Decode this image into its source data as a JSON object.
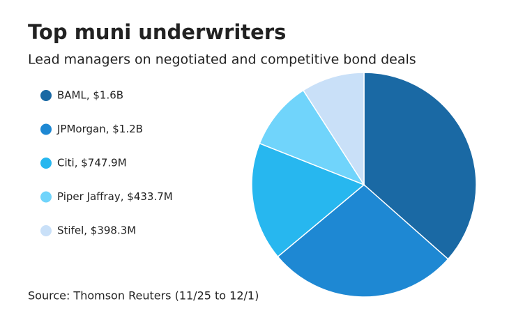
{
  "chart_data": {
    "type": "pie",
    "title": "Top muni underwriters",
    "subtitle": "Lead managers on negotiated and competitive bond deals",
    "source": "Source: Thomson Reuters (11/25 to 12/1)",
    "categories": [
      "BAML, $1.6B",
      "JPMorgan, $1.2B",
      "Citi, $747.9M",
      "Piper Jaffray, $433.7M",
      "Stifel, $398.3M"
    ],
    "values": [
      1600000000,
      1200000000,
      747900000,
      433700000,
      398300000
    ],
    "colors": [
      "#1a69a4",
      "#1e88d3",
      "#27b7ef",
      "#70d4fb",
      "#c9e0f8"
    ]
  }
}
